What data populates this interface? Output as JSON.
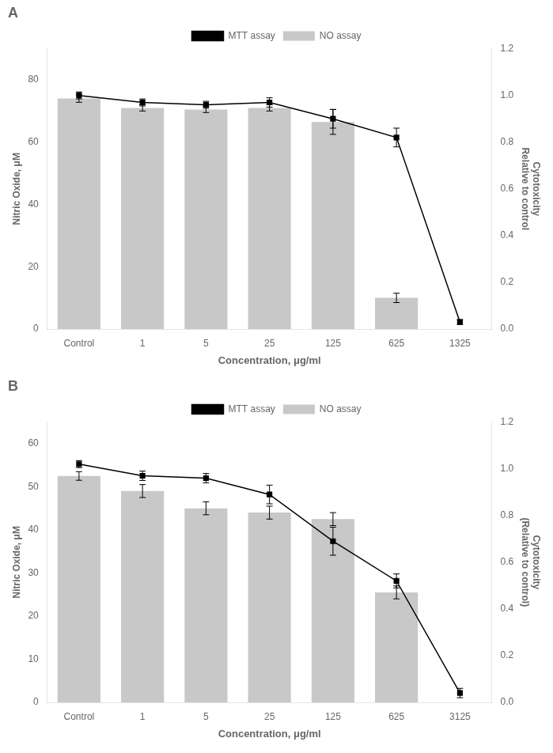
{
  "chart_data": [
    {
      "type": "bar",
      "title": "A",
      "categories": [
        "Control",
        "1",
        "5",
        "25",
        "125",
        "625",
        "1325"
      ],
      "xlabel": "Concentration, μg/ml",
      "ylabel": "Nitric Oxide, μM",
      "y2label": "Cytotoxicity\nRelative to control",
      "ylim": [
        0,
        90
      ],
      "yticks": [
        0,
        20,
        40,
        60,
        80
      ],
      "y2lim": [
        0,
        1.2
      ],
      "y2ticks": [
        {
          "value": 0,
          "label": "0.0"
        },
        0.2,
        0.4,
        0.6,
        0.8,
        {
          "value": 1,
          "label": "1.0"
        },
        1.2
      ],
      "grid": false,
      "legend": "top",
      "series": [
        {
          "name": "NO assay",
          "type": "bar",
          "color": "#c8c8c8",
          "values": [
            74,
            71,
            70.5,
            71,
            66.5,
            10,
            0
          ],
          "errors": [
            1.2,
            1.0,
            1.0,
            1.0,
            4.0,
            1.5,
            0
          ]
        },
        {
          "name": "MTT assay",
          "type": "line",
          "color": "#000000",
          "marker": "square",
          "line_style": "solid",
          "axis": "y2",
          "values": [
            1.0,
            0.97,
            0.96,
            0.97,
            0.9,
            0.82,
            0.03
          ],
          "errors": [
            0.015,
            0.015,
            0.015,
            0.02,
            0.04,
            0.04,
            0.01
          ]
        }
      ]
    },
    {
      "type": "bar",
      "title": "B",
      "categories": [
        "Control",
        "1",
        "5",
        "25",
        "125",
        "625",
        "3125"
      ],
      "xlabel": "Concentration, μg/ml",
      "ylabel": "Nitric Oxide, μM",
      "y2label": "Cytotoxicity\n(Relative to control)",
      "ylim": [
        0,
        65
      ],
      "yticks": [
        0,
        10,
        20,
        30,
        40,
        50,
        60
      ],
      "y2lim": [
        0,
        1.2
      ],
      "y2ticks": [
        {
          "value": 0,
          "label": "0.0"
        },
        0.2,
        0.4,
        0.6,
        0.8,
        {
          "value": 1,
          "label": "1.0"
        },
        1.2
      ],
      "grid": false,
      "legend": "top",
      "series": [
        {
          "name": "NO assay",
          "type": "bar",
          "color": "#c8c8c8",
          "values": [
            52.5,
            49,
            45,
            44,
            42.5,
            25.5,
            0
          ],
          "errors": [
            1.0,
            1.5,
            1.5,
            1.5,
            1.5,
            1.5,
            0
          ]
        },
        {
          "name": "MTT assay",
          "type": "line",
          "color": "#000000",
          "marker": "square",
          "line_style": "solid",
          "axis": "y2",
          "values": [
            1.02,
            0.97,
            0.96,
            0.89,
            0.69,
            0.52,
            0.04
          ],
          "errors": [
            0.015,
            0.02,
            0.02,
            0.04,
            0.06,
            0.03,
            0.02
          ]
        }
      ]
    }
  ]
}
